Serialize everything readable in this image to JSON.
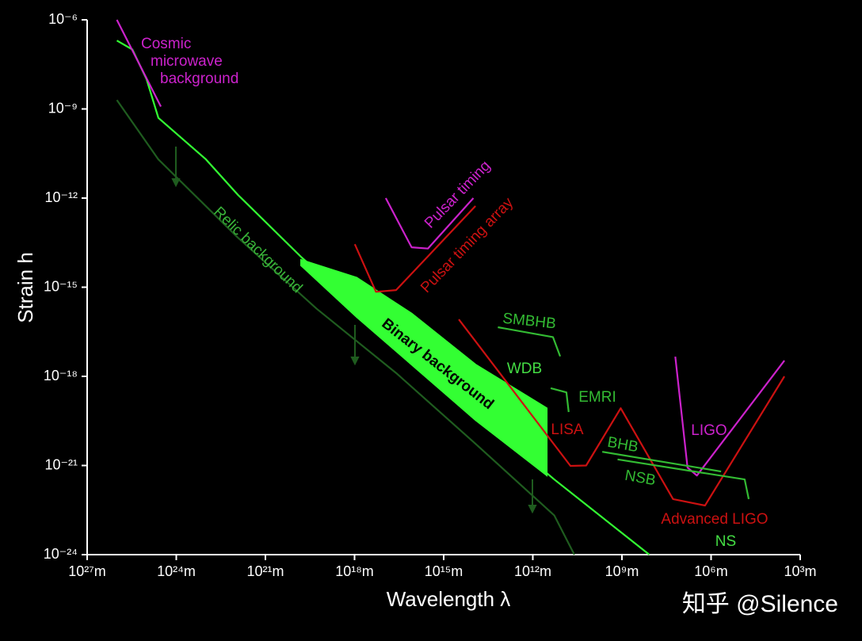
{
  "chart_data": {
    "type": "line",
    "xlabel": "Wavelength  λ",
    "ylabel": "Strain  h",
    "watermark": "知乎 @Silence",
    "xscale": "log",
    "yscale": "log",
    "xlim": [
      1e+27,
      1000.0
    ],
    "ylim": [
      1e-24,
      1e-06
    ],
    "xticks": [
      {
        "value": 1e+27,
        "label": "10²⁷m"
      },
      {
        "value": 1e+24,
        "label": "10²⁴m"
      },
      {
        "value": 1e+21,
        "label": "10²¹m"
      },
      {
        "value": 1e+18,
        "label": "10¹⁸m"
      },
      {
        "value": 1000000000000000.0,
        "label": "10¹⁵m"
      },
      {
        "value": 1000000000000.0,
        "label": "10¹²m"
      },
      {
        "value": 1000000000.0,
        "label": "10⁹m"
      },
      {
        "value": 1000000.0,
        "label": "10⁶m"
      },
      {
        "value": 1000.0,
        "label": "10³m"
      }
    ],
    "yticks": [
      {
        "value": 1e-06,
        "label": "10⁻⁶"
      },
      {
        "value": 1e-09,
        "label": "10⁻⁹"
      },
      {
        "value": 1e-12,
        "label": "10⁻¹²"
      },
      {
        "value": 1e-15,
        "label": "10⁻¹⁵"
      },
      {
        "value": 1e-18,
        "label": "10⁻¹⁸"
      },
      {
        "value": 1e-21,
        "label": "10⁻²¹"
      },
      {
        "value": 1e-24,
        "label": "10⁻²⁴"
      }
    ],
    "annotations": [
      "WDB",
      "NS"
    ],
    "series": [
      {
        "color": "#33ff33",
        "x": [
          1e+26,
          3e+25,
          1e+25,
          4e+24,
          1e+23,
          8.5e+21,
          6e+19,
          4e+16,
          85000000000000.0,
          190000000000.0,
          120000000.0
        ],
        "values": [
          2e-07,
          1e-07,
          1e-08,
          5e-10,
          2e-11,
          1.3e-12,
          1e-14,
          1.6e-17,
          6e-20,
          3.4e-22,
          1e-24
        ]
      },
      {
        "name": "Relic background",
        "color": "#1f5c1f",
        "x": [
          1e+26,
          4e+24,
          8.5e+21,
          1.9e+19,
          4e+16,
          85000000000000.0,
          190000000000.0,
          40000000000.0
        ],
        "values": [
          2e-09,
          2e-11,
          4.7e-14,
          1.9e-16,
          1.3e-18,
          5.4e-21,
          2.1e-23,
          1e-24
        ]
      },
      {
        "name": "Binary background",
        "color": "#33ff33",
        "x": [
          6.3e+19,
          8.5e+17,
          1.2e+16,
          85000000000000.0,
          340000000000.0
        ],
        "values": [
          8.3e-15,
          2.1e-15,
          1.3e-16,
          2.5e-18,
          8.5e-20
        ],
        "values_low": [
          5.4e-15,
          1e-16,
          2.5e-18,
          3.4e-20,
          4.7e-22
        ]
      },
      {
        "name": "Cosmic microwave background",
        "color": "#cc22cc",
        "x": [
          1e+26,
          3.3e+24
        ],
        "values": [
          1e-06,
          1.2e-09
        ]
      },
      {
        "name": "Pulsar timing",
        "color": "#cc22cc",
        "x": [
          8.9e+16,
          1.2e+16,
          3400000000000000.0,
          100000000000000.0
        ],
        "values": [
          1e-12,
          2.2e-14,
          2e-14,
          1e-12
        ]
      },
      {
        "name": "Pulsar timing array",
        "color": "#cc1111",
        "x": [
          9.8e+17,
          1.9e+17,
          4e+16,
          85000000000000.0
        ],
        "values": [
          2.8e-14,
          7e-16,
          8e-16,
          5.4e-13
        ]
      },
      {
        "name": "LISA",
        "color": "#cc1111",
        "x": [
          310000000000000.0,
          54000000000.0,
          16000000000.0,
          1100000000.0,
          19000000.0,
          1600000.0,
          3400.0
        ],
        "values": [
          8.3e-17,
          9.7e-22,
          1e-21,
          8.5e-20,
          7.4e-23,
          4.5e-23,
          1e-18
        ]
      },
      {
        "name": "LIGO",
        "color": "#cc22cc",
        "x": [
          16000000.0,
          6200000.0,
          3000000.0,
          3400.0
        ],
        "values": [
          4.6e-18,
          8.5e-22,
          4.6e-22,
          3.4e-18
        ]
      },
      {
        "name": "Advanced LIGO",
        "color": "#cc1111",
        "x": [],
        "values": []
      },
      {
        "name": "SMBHB",
        "color": "#33bb33",
        "x": [
          15000000000000.0,
          210000000000.0,
          120000000000.0
        ],
        "values": [
          4.5e-17,
          2.1e-17,
          4.7e-18
        ]
      },
      {
        "name": "EMRI",
        "color": "#33bb33",
        "x": [
          250000000000.0,
          74000000000.0,
          62000000000.0
        ],
        "values": [
          4e-19,
          2.9e-19,
          6.3e-20
        ]
      },
      {
        "name": "BHB",
        "color": "#33bb33",
        "x": [
          4600000000.0,
          460000.0
        ],
        "values": [
          2.9e-21,
          6.3e-22
        ]
      },
      {
        "name": "NSB",
        "color": "#33bb33",
        "x": [
          1400000000.0,
          74000.0,
          54000.0
        ],
        "values": [
          1.6e-21,
          3.4e-22,
          7.4e-23
        ]
      }
    ]
  }
}
